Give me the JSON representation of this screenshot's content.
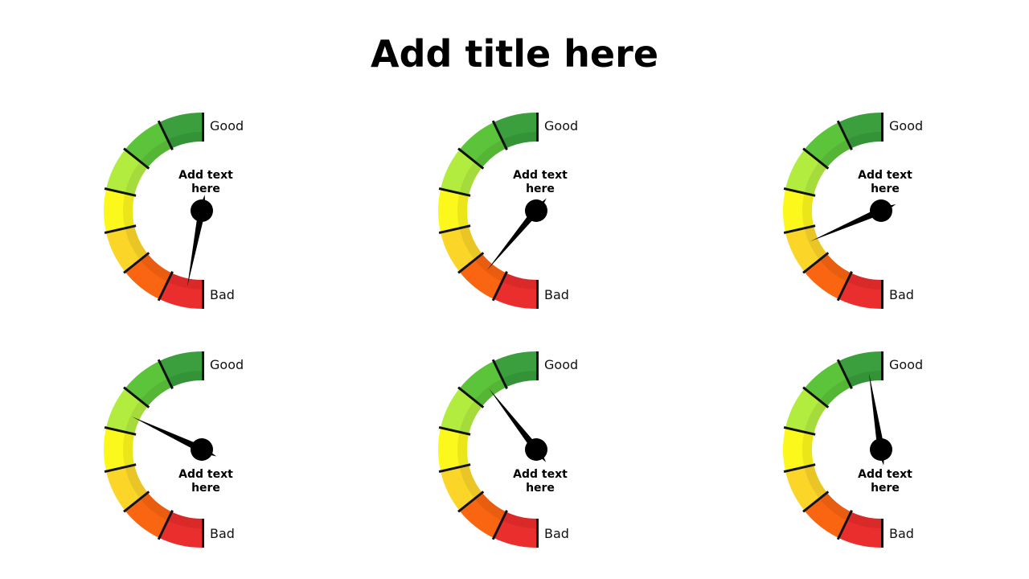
{
  "title": "Add title here",
  "segment_colors": [
    "#3a9f3c",
    "#5cc43a",
    "#b2ec3f",
    "#fdf81c",
    "#fbd629",
    "#fa6512",
    "#ea2d2d"
  ],
  "gauges": [
    {
      "good": "Good",
      "bad": "Bad",
      "caption_line1": "Add text",
      "caption_line2": "here",
      "level": 0.06
    },
    {
      "good": "Good",
      "bad": "Bad",
      "caption_line1": "Add text",
      "caption_line2": "here",
      "level": 0.22
    },
    {
      "good": "Good",
      "bad": "Bad",
      "caption_line1": "Add text",
      "caption_line2": "here",
      "level": 0.37
    },
    {
      "good": "Good",
      "bad": "Bad",
      "caption_line1": "Add text",
      "caption_line2": "here",
      "level": 0.64
    },
    {
      "good": "Good",
      "bad": "Bad",
      "caption_line1": "Add text",
      "caption_line2": "here",
      "level": 0.79
    },
    {
      "good": "Good",
      "bad": "Bad",
      "caption_line1": "Add text",
      "caption_line2": "here",
      "level": 0.95
    }
  ]
}
